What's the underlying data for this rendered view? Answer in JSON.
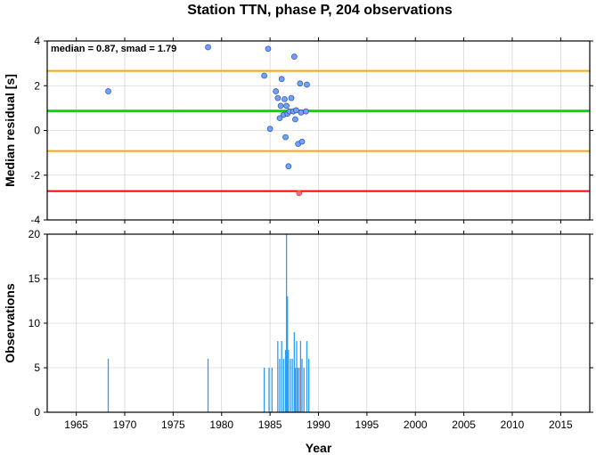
{
  "title": "Station TTN, phase P, 204 observations",
  "chart_data": [
    {
      "type": "scatter",
      "ylabel": "Median residual [s]",
      "annotation": "median = 0.87, smad = 1.79",
      "xlim": [
        1962,
        2018
      ],
      "ylim": [
        -4,
        4
      ],
      "xticks": [
        1965,
        1970,
        1975,
        1980,
        1985,
        1990,
        1995,
        2000,
        2005,
        2010,
        2015
      ],
      "yticks": [
        -4,
        -2,
        0,
        2,
        4
      ],
      "grid": true,
      "reference_lines": [
        {
          "role": "median",
          "y": 0.87,
          "color": "#00e000"
        },
        {
          "role": "upper",
          "y": 2.66,
          "color": "#ffa500"
        },
        {
          "role": "lower",
          "y": -0.92,
          "color": "#ffa500"
        },
        {
          "role": "outlier-limit",
          "y": -2.71,
          "color": "#ff0000"
        }
      ],
      "point_color": "#6ea2ff",
      "outlier_color": "#ff6e6e",
      "points": [
        {
          "x": 1968.3,
          "y": 1.75
        },
        {
          "x": 1978.6,
          "y": 3.72
        },
        {
          "x": 1984.4,
          "y": 2.45
        },
        {
          "x": 1984.8,
          "y": 3.65
        },
        {
          "x": 1985.0,
          "y": 0.07
        },
        {
          "x": 1985.6,
          "y": 1.75
        },
        {
          "x": 1985.8,
          "y": 1.45
        },
        {
          "x": 1986.0,
          "y": 0.55
        },
        {
          "x": 1986.1,
          "y": 1.1
        },
        {
          "x": 1986.2,
          "y": 2.3
        },
        {
          "x": 1986.4,
          "y": 0.7
        },
        {
          "x": 1986.5,
          "y": 1.4
        },
        {
          "x": 1986.6,
          "y": -0.3
        },
        {
          "x": 1986.7,
          "y": 1.1
        },
        {
          "x": 1986.8,
          "y": 0.75
        },
        {
          "x": 1986.9,
          "y": -1.6
        },
        {
          "x": 1987.0,
          "y": 0.85
        },
        {
          "x": 1987.2,
          "y": 1.45
        },
        {
          "x": 1987.4,
          "y": 0.85
        },
        {
          "x": 1987.5,
          "y": 3.3
        },
        {
          "x": 1987.6,
          "y": 0.5
        },
        {
          "x": 1987.7,
          "y": 0.9
        },
        {
          "x": 1987.9,
          "y": -0.6
        },
        {
          "x": 1988.0,
          "y": -2.8,
          "outlier": true
        },
        {
          "x": 1988.1,
          "y": 2.1
        },
        {
          "x": 1988.2,
          "y": 0.8
        },
        {
          "x": 1988.3,
          "y": -0.5
        },
        {
          "x": 1988.7,
          "y": 0.85
        },
        {
          "x": 1988.8,
          "y": 2.05
        }
      ]
    },
    {
      "type": "bar",
      "xlabel": "Year",
      "ylabel": "Observations",
      "xlim": [
        1962,
        2018
      ],
      "ylim": [
        0,
        20
      ],
      "xticks": [
        1965,
        1970,
        1975,
        1980,
        1985,
        1990,
        1995,
        2000,
        2005,
        2010,
        2015
      ],
      "yticks": [
        0,
        5,
        10,
        15,
        20
      ],
      "grid": true,
      "bar_color": "#2b9cf0",
      "outlier_bar_color": "#ff6e6e",
      "bars": [
        {
          "x": 1968.3,
          "value": 6
        },
        {
          "x": 1978.6,
          "value": 6
        },
        {
          "x": 1984.4,
          "value": 5
        },
        {
          "x": 1984.9,
          "value": 5
        },
        {
          "x": 1985.2,
          "value": 5
        },
        {
          "x": 1985.8,
          "value": 8
        },
        {
          "x": 1986.0,
          "value": 6
        },
        {
          "x": 1986.2,
          "value": 8
        },
        {
          "x": 1986.4,
          "value": 6
        },
        {
          "x": 1986.6,
          "value": 7
        },
        {
          "x": 1986.7,
          "value": 20
        },
        {
          "x": 1986.8,
          "value": 13
        },
        {
          "x": 1986.9,
          "value": 7
        },
        {
          "x": 1987.1,
          "value": 6
        },
        {
          "x": 1987.3,
          "value": 6
        },
        {
          "x": 1987.5,
          "value": 9
        },
        {
          "x": 1987.6,
          "value": 5
        },
        {
          "x": 1987.75,
          "value": 8
        },
        {
          "x": 1987.85,
          "value": 5
        },
        {
          "x": 1988.0,
          "value": 5,
          "outlier": true
        },
        {
          "x": 1988.15,
          "value": 8
        },
        {
          "x": 1988.3,
          "value": 6
        },
        {
          "x": 1988.5,
          "value": 5
        },
        {
          "x": 1988.8,
          "value": 8
        },
        {
          "x": 1989.0,
          "value": 6
        }
      ]
    }
  ]
}
